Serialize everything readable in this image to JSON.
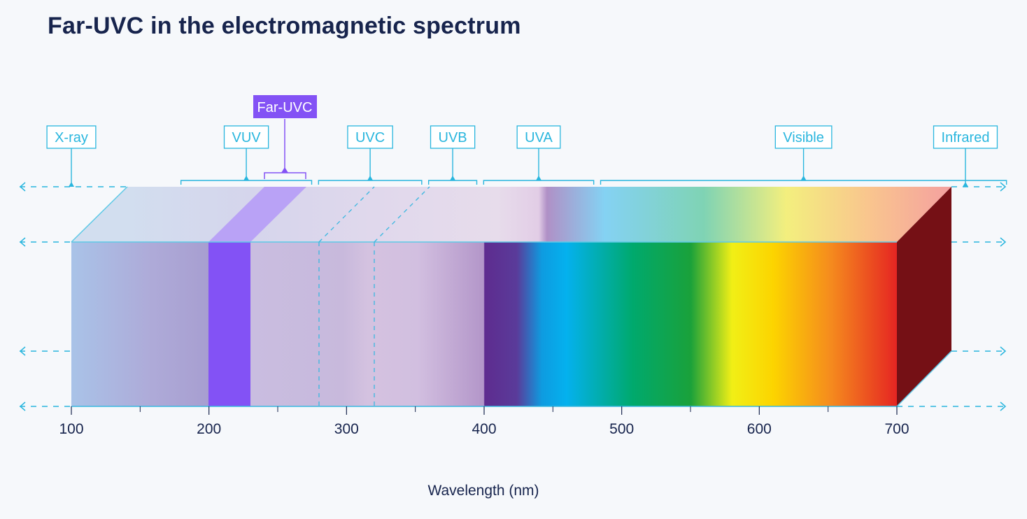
{
  "title": "Far-UVC in the electromagnetic spectrum",
  "axis": {
    "label": "Wavelength (nm)",
    "unit": "nm",
    "ticks": [
      100,
      200,
      300,
      400,
      500,
      600,
      700
    ],
    "minor_ticks": [
      150,
      250,
      350,
      450,
      550,
      650
    ],
    "range": [
      100,
      700
    ]
  },
  "bands": [
    {
      "name": "X-ray",
      "pointer_nm": 100,
      "range_nm": null
    },
    {
      "name": "VUV",
      "range_nm": [
        140,
        235
      ]
    },
    {
      "name": "UVC",
      "range_nm": [
        240,
        315
      ]
    },
    {
      "name": "UVB",
      "range_nm": [
        320,
        355
      ]
    },
    {
      "name": "UVA",
      "range_nm": [
        360,
        440
      ]
    },
    {
      "name": "Visible",
      "range_nm": [
        445,
        740
      ]
    },
    {
      "name": "Infrared",
      "pointer_nm": 752,
      "range_nm": null
    }
  ],
  "highlight": {
    "name": "Far-UVC",
    "range_nm": [
      240,
      270
    ],
    "band_nm": [
      200,
      230
    ],
    "color": "#8352f5"
  },
  "boundaries_nm": [
    280,
    320
  ],
  "colors": {
    "title": "#17244d",
    "accent": "#29b6de",
    "highlight": "#8352f5",
    "infrared": "#751015"
  }
}
